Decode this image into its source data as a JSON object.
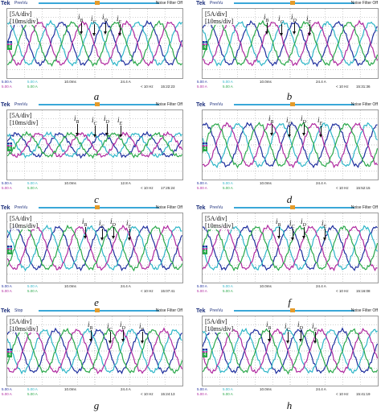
{
  "panels": [
    {
      "caption": "a",
      "mode": "PrevVu",
      "scale_amp": "[5A/div]",
      "scale_time": "[10ms/div]",
      "noise": "Noise Filter Off",
      "labels": [
        "iB",
        "iC",
        "iD",
        "iE"
      ],
      "status": {
        "ch1": "5.00 A",
        "ch2": "5.00 A",
        "ch3": "5.00 A",
        "ch4": "5.00 A",
        "tb": "10.0ms",
        "trig": "24.4 A",
        "freq": "< 10 Hz",
        "time": "15:22:23"
      }
    },
    {
      "caption": "b",
      "mode": "PrevVu",
      "scale_amp": "[5A/div]",
      "scale_time": "[10ms/div]",
      "noise": "Noise Filter Off",
      "labels": [
        "iB",
        "iC",
        "iD",
        "iE"
      ],
      "status": {
        "ch1": "5.00 A",
        "ch2": "5.00 A",
        "ch3": "5.00 A",
        "ch4": "5.00 A",
        "tb": "10.0ms",
        "trig": "24.4 A",
        "freq": "< 10 Hz",
        "time": "15:31:36"
      }
    },
    {
      "caption": "c",
      "mode": "PrevVu",
      "scale_amp": "[5A/div]",
      "scale_time": "[10ms/div]",
      "noise": "Noise Filter Off",
      "labels": [
        "iB",
        "iC",
        "iD",
        "iE"
      ],
      "status": {
        "ch1": "5.00 A",
        "ch2": "5.00 A",
        "ch3": "5.00 A",
        "ch4": "5.00 A",
        "tb": "10.0ms",
        "trig": "12.8 A",
        "freq": "< 10 Hz",
        "time": "17:25:24"
      }
    },
    {
      "caption": "d",
      "mode": "PrevVu",
      "scale_amp": "",
      "scale_time": "",
      "noise": "Noise Filter Off",
      "labels": [
        "iB",
        "iC",
        "iD",
        "iE"
      ],
      "status": {
        "ch1": "5.00 A",
        "ch2": "5.00 A",
        "ch3": "5.00 A",
        "ch4": "5.00 A",
        "tb": "10.0ms",
        "trig": "24.4 A",
        "freq": "< 10 Hz",
        "time": "15:52:15"
      }
    },
    {
      "caption": "e",
      "mode": "PrevVu",
      "scale_amp": "[5A/div]",
      "scale_time": "[10ms/div]",
      "noise": "Noise Filter Off",
      "labels": [
        "iB",
        "iC",
        "iD",
        "iE"
      ],
      "status": {
        "ch1": "5.00 A",
        "ch2": "5.00 A",
        "ch3": "5.00 A",
        "ch4": "5.00 A",
        "tb": "10.0ms",
        "trig": "24.4 A",
        "freq": "< 10 Hz",
        "time": "15:07:41"
      }
    },
    {
      "caption": "f",
      "mode": "PrevVu",
      "scale_amp": "[5A/div]",
      "scale_time": "[10ms/div]",
      "noise": "Noise Filter Off",
      "labels": [
        "iB",
        "iC",
        "iD",
        "iE"
      ],
      "status": {
        "ch1": "5.00 A",
        "ch2": "5.00 A",
        "ch3": "5.00 A",
        "ch4": "5.00 A",
        "tb": "10.0ms",
        "trig": "24.4 A",
        "freq": "< 10 Hz",
        "time": "15:16:08"
      }
    },
    {
      "caption": "g",
      "mode": "Stop",
      "scale_amp": "[5A/div]",
      "scale_time": "[10ms/div]",
      "noise": "Noise Filter Off",
      "labels": [
        "iB",
        "iC",
        "iD",
        "iE"
      ],
      "status": {
        "ch1": "5.00 A",
        "ch2": "5.00 A",
        "ch3": "5.00 A",
        "ch4": "5.00 A",
        "tb": "10.0ms",
        "trig": "24.4 A",
        "freq": "< 10 Hz",
        "time": "15:24:13"
      }
    },
    {
      "caption": "h",
      "mode": "PrevVu",
      "scale_amp": "[5A/div]",
      "scale_time": "[10ms/div]",
      "noise": "Noise Filter Off",
      "labels": [
        "iB",
        "iC",
        "iD",
        "iE"
      ],
      "status": {
        "ch1": "5.00 A",
        "ch2": "5.00 A",
        "ch3": "5.00 A",
        "ch4": "5.00 A",
        "tb": "10.0ms",
        "trig": "24.4 A",
        "freq": "< 10 Hz",
        "time": "15:41:19"
      }
    }
  ],
  "brand": "Tek",
  "colors": {
    "ch1": "#1f2f9e",
    "ch2": "#2fb6c8",
    "ch3": "#b02aa0",
    "ch4": "#2aa84a",
    "grid": "#8a8a8a"
  }
}
